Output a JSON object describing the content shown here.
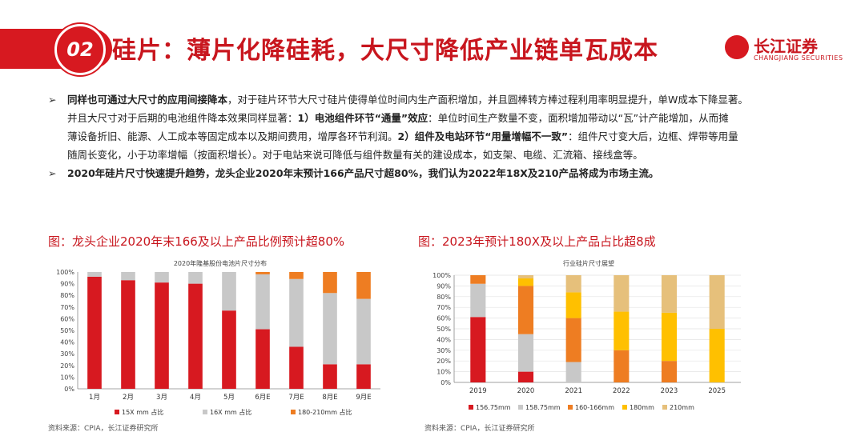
{
  "header": {
    "badge": "02",
    "title": "硅片：薄片化降硅耗，大尺寸降低产业链单瓦成本",
    "logo_cn": "长江证券",
    "logo_en": "CHANGJIANG SECURITIES"
  },
  "bullets": [
    {
      "lines": [
        [
          {
            "b": true,
            "t": "同样也可通过大尺寸的应用间接降本"
          },
          {
            "b": false,
            "t": "，对于硅片环节大尺寸硅片使得单位时间内生产面积增加，并且圆棒转方棒过程利用率明显提升，单W成本下降显著。"
          }
        ],
        [
          {
            "b": false,
            "t": "并且大尺寸对于后期的电池组件降本效果同样显著："
          },
          {
            "b": true,
            "t": "1）电池组件环节“通量”效应"
          },
          {
            "b": false,
            "t": "：单位时间生产数量不变，面积增加带动以“瓦”计产能增加，从而摊"
          }
        ],
        [
          {
            "b": false,
            "t": "薄设备折旧、能源、人工成本等固定成本以及期间费用，增厚各环节利润。"
          },
          {
            "b": true,
            "t": "2）组件及电站环节“用量增幅不一致”"
          },
          {
            "b": false,
            "t": "：组件尺寸变大后，边框、焊带等用量"
          }
        ],
        [
          {
            "b": false,
            "t": "随周长变化，小于功率增幅（按面积增长）。对于电站来说可降低与组件数量有关的建设成本，如支架、电缆、汇流箱、接线盒等。"
          }
        ]
      ]
    },
    {
      "lines": [
        [
          {
            "b": true,
            "t": "2020年硅片尺寸快速提升趋势，龙头企业2020年末预计166产品尺寸超80%，我们认为2022年18X及210产品将成为市场主流。"
          }
        ]
      ]
    }
  ],
  "left": {
    "caption": "图：龙头企业2020年末166及以上产品比例预计超80%",
    "source": "资料来源：CPIA，长江证券研究所"
  },
  "right": {
    "caption": "图：2023年预计180X及以上产品占比超8成",
    "source": "资料来源：CPIA，长江证券研究所"
  },
  "chart_data": [
    {
      "type": "bar",
      "stacked": true,
      "title": "2020年隆基股份电池片尺寸分布",
      "categories": [
        "1月",
        "2月",
        "3月",
        "4月",
        "5月",
        "6月E",
        "7月E",
        "8月E",
        "9月E"
      ],
      "yticks": [
        "0%",
        "10%",
        "20%",
        "30%",
        "40%",
        "50%",
        "60%",
        "70%",
        "80%",
        "90%",
        "100%"
      ],
      "ylim": [
        0,
        100
      ],
      "legend_position": "bottom",
      "series": [
        {
          "name": "15X mm 占比",
          "color": "#d71920",
          "values": [
            96,
            93,
            91,
            90,
            67,
            51,
            36,
            21,
            21
          ]
        },
        {
          "name": "16X mm 占比",
          "color": "#c8c8c8",
          "values": [
            4,
            7,
            9,
            10,
            33,
            47,
            58,
            61,
            56
          ]
        },
        {
          "name": "180-210mm 占比",
          "color": "#ee7d22",
          "values": [
            0,
            0,
            0,
            0,
            0,
            2,
            6,
            18,
            23
          ]
        }
      ]
    },
    {
      "type": "bar",
      "stacked": true,
      "title": "行业硅片尺寸展望",
      "categories": [
        "2019",
        "2020",
        "2021",
        "2022",
        "2023",
        "2025"
      ],
      "yticks": [
        "0%",
        "10%",
        "20%",
        "30%",
        "40%",
        "50%",
        "60%",
        "70%",
        "80%",
        "90%",
        "100%"
      ],
      "ylim": [
        0,
        100
      ],
      "legend_position": "bottom",
      "series": [
        {
          "name": "156.75mm",
          "color": "#d71920",
          "values": [
            61,
            10,
            0,
            0,
            0,
            0
          ]
        },
        {
          "name": "158.75mm",
          "color": "#c8c8c8",
          "values": [
            31,
            35,
            19,
            0,
            0,
            0
          ]
        },
        {
          "name": "160-166mm",
          "color": "#ee7d22",
          "values": [
            8,
            45,
            41,
            30,
            20,
            0
          ]
        },
        {
          "name": "180mm",
          "color": "#ffc000",
          "values": [
            0,
            7,
            24,
            36,
            45,
            50
          ]
        },
        {
          "name": "210mm",
          "color": "#e6c07b",
          "values": [
            0,
            3,
            16,
            34,
            35,
            50
          ]
        }
      ]
    }
  ]
}
